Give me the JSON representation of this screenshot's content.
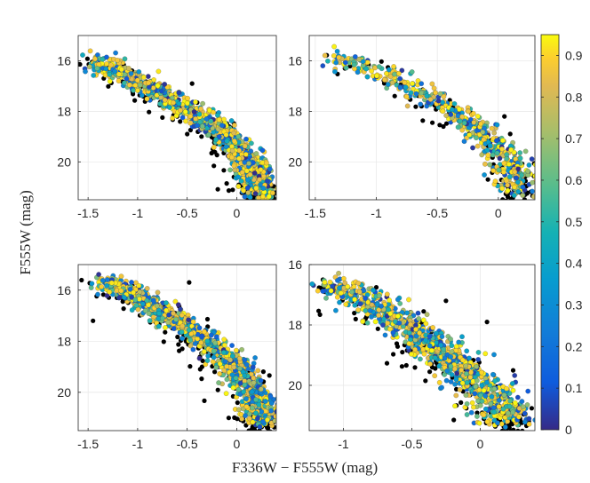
{
  "chart_data": {
    "type": "scatter",
    "description_layout": "2x2 grid of color-magnitude diagrams sharing axis labels and a colorbar",
    "xlabel": "F336W − F555W (mag)",
    "ylabel": "F555W (mag)",
    "y_inverted": true,
    "grid": true,
    "colorbar": {
      "range": [
        0,
        0.95
      ],
      "ticks": [
        0,
        0.1,
        0.2,
        0.3,
        0.4,
        0.5,
        0.6,
        0.7,
        0.8,
        0.9
      ],
      "tick_labels": [
        "0",
        "0.1",
        "0.2",
        "0.3",
        "0.4",
        "0.5",
        "0.6",
        "0.7",
        "0.8",
        "0.9"
      ],
      "colormap": "parula"
    },
    "panels": [
      {
        "position": "top-left",
        "xlim": [
          -1.6,
          0.4
        ],
        "ylim": [
          21.5,
          15.0
        ],
        "xticks": [
          -1.5,
          -1,
          -0.5,
          0
        ],
        "xtick_labels": [
          "-1.5",
          "-1",
          "-0.5",
          "0"
        ],
        "yticks": [
          16,
          18,
          20
        ],
        "ytick_labels": [
          "16",
          "18",
          "20"
        ],
        "sequence": {
          "x0": -1.45,
          "y0": 16.0,
          "x1": 0.25,
          "y1": 21.4,
          "curve": 0.9,
          "spread": 0.09
        },
        "n_colored": 1100,
        "n_black": 230,
        "outliers": [
          [
            -0.45,
            16.9
          ],
          [
            -0.5,
            18.9
          ],
          [
            -1.35,
            16.2
          ],
          [
            -1.05,
            17.2
          ],
          [
            -0.6,
            18.2
          ]
        ]
      },
      {
        "position": "top-right",
        "xlim": [
          -1.55,
          0.3
        ],
        "ylim": [
          21.5,
          15.0
        ],
        "xticks": [
          -1.5,
          -1,
          -0.5,
          0
        ],
        "xtick_labels": [
          "-1.5",
          "-1",
          "-0.5",
          "0"
        ],
        "yticks": [
          16,
          18,
          20
        ],
        "ytick_labels": [
          "16",
          "18",
          "20"
        ],
        "sequence": {
          "x0": -1.35,
          "y0": 15.8,
          "x1": 0.15,
          "y1": 21.2,
          "curve": 1.0,
          "spread": 0.08
        },
        "n_colored": 520,
        "n_black": 110,
        "outliers": [
          [
            0.05,
            18.2
          ],
          [
            0.1,
            19.4
          ],
          [
            -0.45,
            18.6
          ]
        ]
      },
      {
        "position": "bottom-left",
        "xlim": [
          -1.6,
          0.4
        ],
        "ylim": [
          21.5,
          15.0
        ],
        "xticks": [
          -1.5,
          -1,
          -0.5,
          0
        ],
        "xtick_labels": [
          "-1.5",
          "-1",
          "-0.5",
          "0"
        ],
        "yticks": [
          16,
          18,
          20
        ],
        "ytick_labels": [
          "16",
          "18",
          "20"
        ],
        "sequence": {
          "x0": -1.35,
          "y0": 15.6,
          "x1": 0.25,
          "y1": 21.2,
          "curve": 0.9,
          "spread": 0.09
        },
        "n_colored": 1150,
        "n_black": 220,
        "outliers": [
          [
            -0.48,
            15.7
          ],
          [
            -0.55,
            18.3
          ],
          [
            0.0,
            18.6
          ],
          [
            -1.45,
            17.2
          ],
          [
            -0.35,
            19.0
          ]
        ]
      },
      {
        "position": "bottom-right",
        "xlim": [
          -1.25,
          0.4
        ],
        "ylim": [
          21.5,
          16.0
        ],
        "xticks": [
          -1,
          -0.5,
          0
        ],
        "xtick_labels": [
          "-1",
          "-0.5",
          "0"
        ],
        "yticks": [
          16,
          18,
          20
        ],
        "ytick_labels": [
          "16",
          "18",
          "20"
        ],
        "sequence": {
          "x0": -1.05,
          "y0": 16.6,
          "x1": 0.2,
          "y1": 21.2,
          "curve": 0.4,
          "spread": 0.1
        },
        "n_colored": 950,
        "n_black": 200,
        "outliers": [
          [
            -0.25,
            17.2
          ],
          [
            -0.35,
            19.4
          ],
          [
            0.05,
            17.9
          ],
          [
            -1.15,
            16.5
          ]
        ]
      }
    ]
  }
}
